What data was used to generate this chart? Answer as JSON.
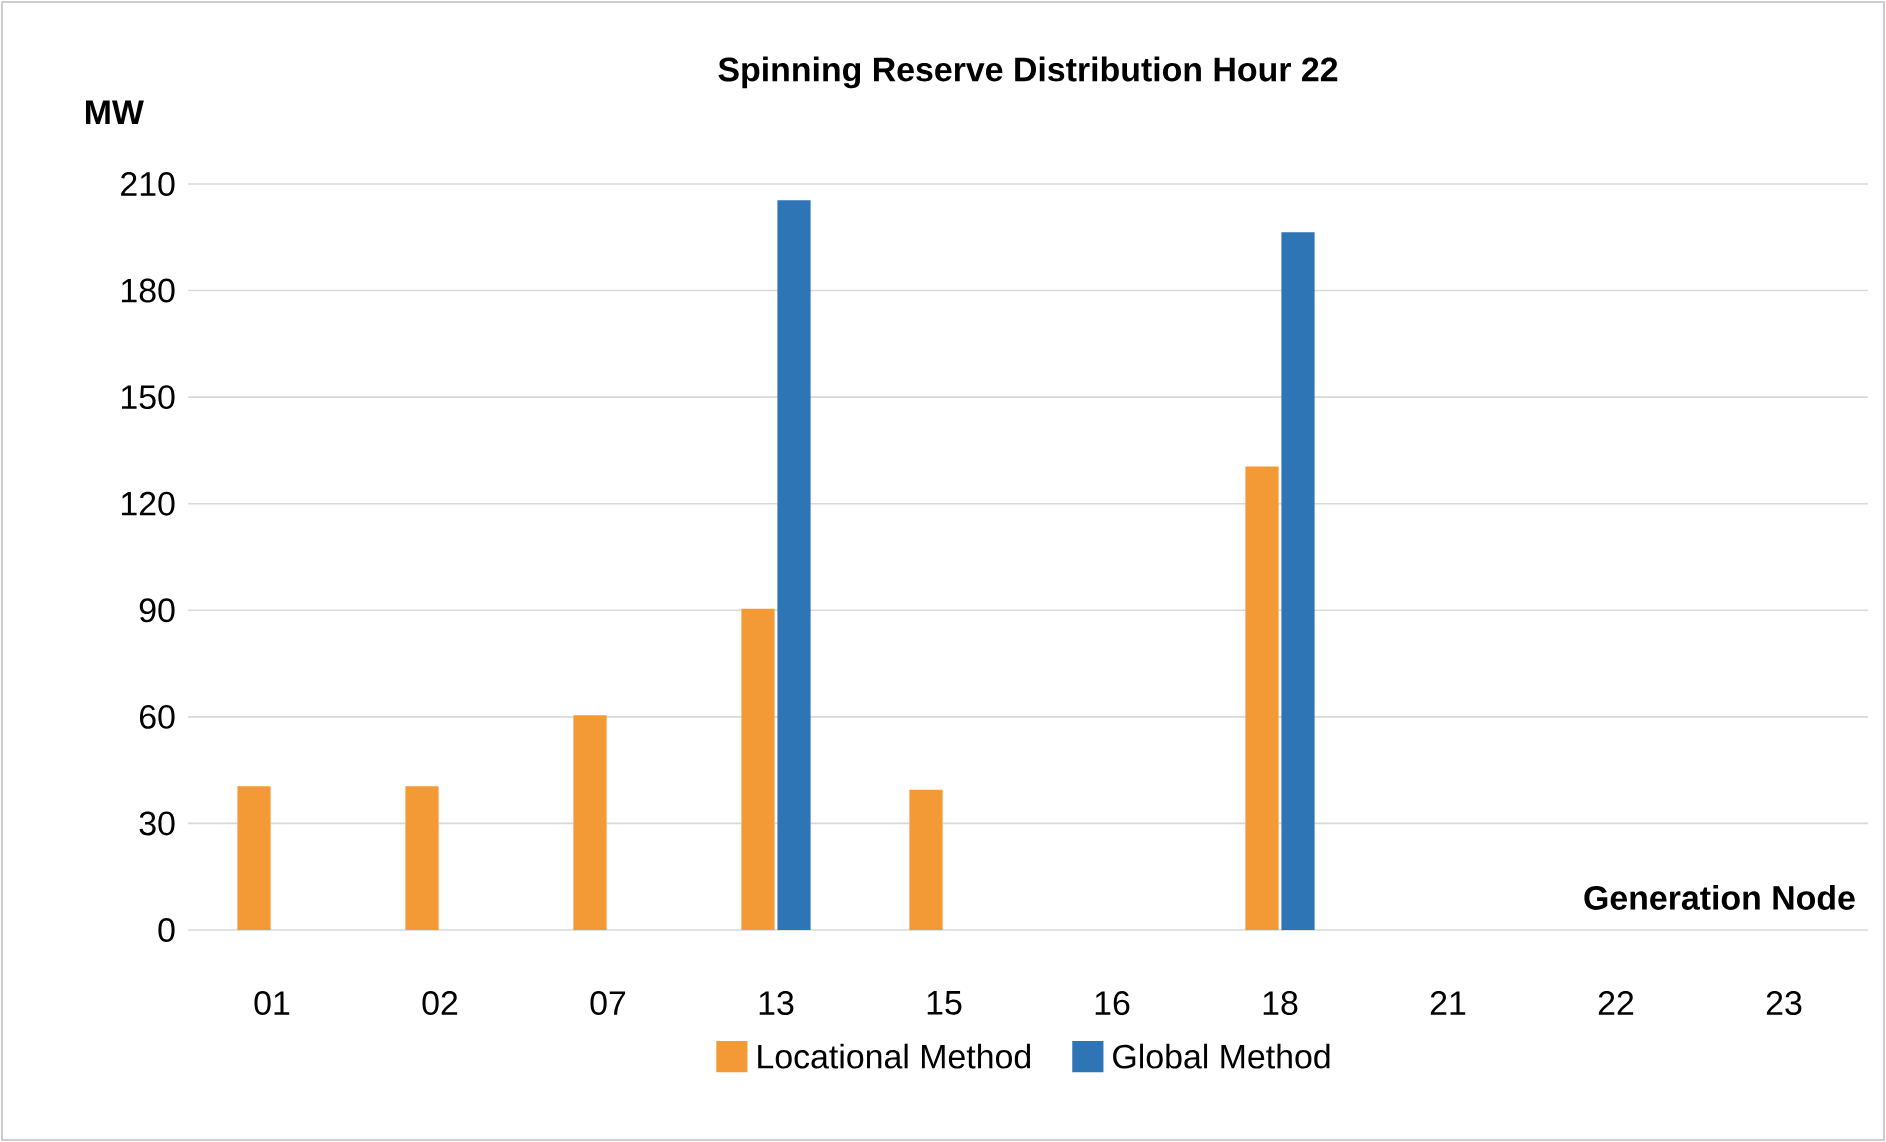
{
  "chart_data": {
    "type": "bar",
    "title": "Spinning Reserve Distribution Hour 22",
    "xlabel": "Generation Node",
    "ylabel": "MW",
    "categories": [
      "01",
      "02",
      "07",
      "13",
      "15",
      "16",
      "18",
      "21",
      "22",
      "23"
    ],
    "series": [
      {
        "name": "Locational Method",
        "color": "#f39a36",
        "values": [
          40,
          40,
          60,
          90,
          39,
          null,
          130,
          null,
          null,
          null
        ]
      },
      {
        "name": "Global Method",
        "color": "#2e75b6",
        "values": [
          null,
          null,
          null,
          205,
          null,
          null,
          196,
          null,
          null,
          null
        ]
      }
    ],
    "ylim": [
      0,
      210
    ],
    "yticks": [
      0,
      30,
      60,
      90,
      120,
      150,
      180,
      210
    ],
    "grid": "y",
    "legend": "bottom"
  }
}
